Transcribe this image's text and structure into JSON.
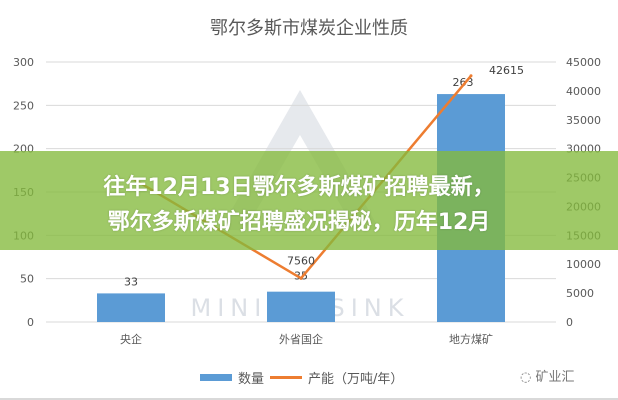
{
  "chart_data": {
    "type": "bar+line",
    "title": "鄂尔多斯市煤炭企业性质",
    "categories": [
      "央企",
      "外省国企",
      "地方煤矿"
    ],
    "series": [
      {
        "name": "数量",
        "type": "bar",
        "axis": "left",
        "values": [
          33,
          35,
          263
        ],
        "color": "#5b9bd5"
      },
      {
        "name": "产能（万吨/年）",
        "type": "line",
        "axis": "right",
        "values": [
          25000,
          7560,
          42615
        ],
        "labels": [
          "",
          "7560",
          "42615"
        ],
        "color": "#ed7d31"
      }
    ],
    "y_left": {
      "range": [
        0,
        300
      ],
      "ticks": [
        "0",
        "50",
        "100",
        "150",
        "200",
        "250",
        "300"
      ]
    },
    "y_right": {
      "range": [
        0,
        45000
      ],
      "ticks": [
        "0",
        "5000",
        "10000",
        "15000",
        "20000",
        "25000",
        "30000",
        "35000",
        "40000",
        "45000"
      ]
    },
    "legend": "bottom",
    "grid": true
  },
  "banner": {
    "line1": "往年12月13日鄂尔多斯煤矿招聘最新，",
    "line2": "鄂尔多斯煤矿招聘盛况揭秘，历年12月"
  },
  "watermark": {
    "text": "矿业汇",
    "logo_text": "MINING SINK"
  }
}
